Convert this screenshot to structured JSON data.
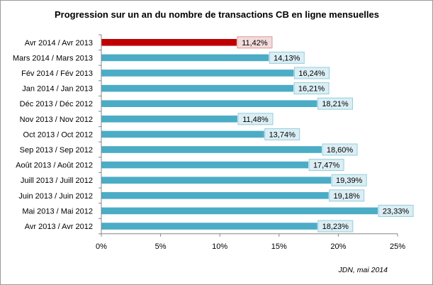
{
  "chart_data": {
    "type": "bar",
    "orientation": "horizontal",
    "title": "Progression sur un an du nombre de transactions CB en ligne mensuelles",
    "categories": [
      "Avr 2014 / Avr 2013",
      "Mars 2014 / Mars 2013",
      "Fév 2014 / Fév 2013",
      "Jan 2014 / Jan 2013",
      "Déc 2013 / Déc 2012",
      "Nov 2013 / Nov 2012",
      "Oct 2013 / Oct 2012",
      "Sep 2013 / Sep 2012",
      "Août 2013 / Août 2012",
      "Juill 2013 / Juill 2012",
      "Juin 2013 / Juin 2012",
      "Mai 2013 / Mai 2012",
      "Avr 2013 / Avr 2012"
    ],
    "values": [
      11.42,
      14.13,
      16.24,
      16.21,
      18.21,
      11.48,
      13.74,
      18.6,
      17.47,
      19.39,
      19.18,
      23.33,
      18.23
    ],
    "data_labels": [
      "11,42%",
      "14,13%",
      "16,24%",
      "16,21%",
      "18,21%",
      "11,48%",
      "13,74%",
      "18,60%",
      "17,47%",
      "19,39%",
      "19,18%",
      "23,33%",
      "18,23%"
    ],
    "highlight_index": 0,
    "x_ticks": [
      0,
      5,
      10,
      15,
      20,
      25
    ],
    "x_tick_labels": [
      "0%",
      "5%",
      "10%",
      "15%",
      "20%",
      "25%"
    ],
    "xlim": [
      0,
      25
    ],
    "xlabel": "",
    "ylabel": "",
    "grid": false,
    "legend": "none"
  },
  "colors": {
    "bar": "#4bacc6",
    "bar_highlight": "#c00000",
    "label_bg": "#dbeef4",
    "label_border": "#93cddd",
    "label_bg_highlight": "#f2dcdb",
    "label_border_highlight": "#d99694",
    "axis": "#868686"
  },
  "source": "JDN, mai 2014"
}
